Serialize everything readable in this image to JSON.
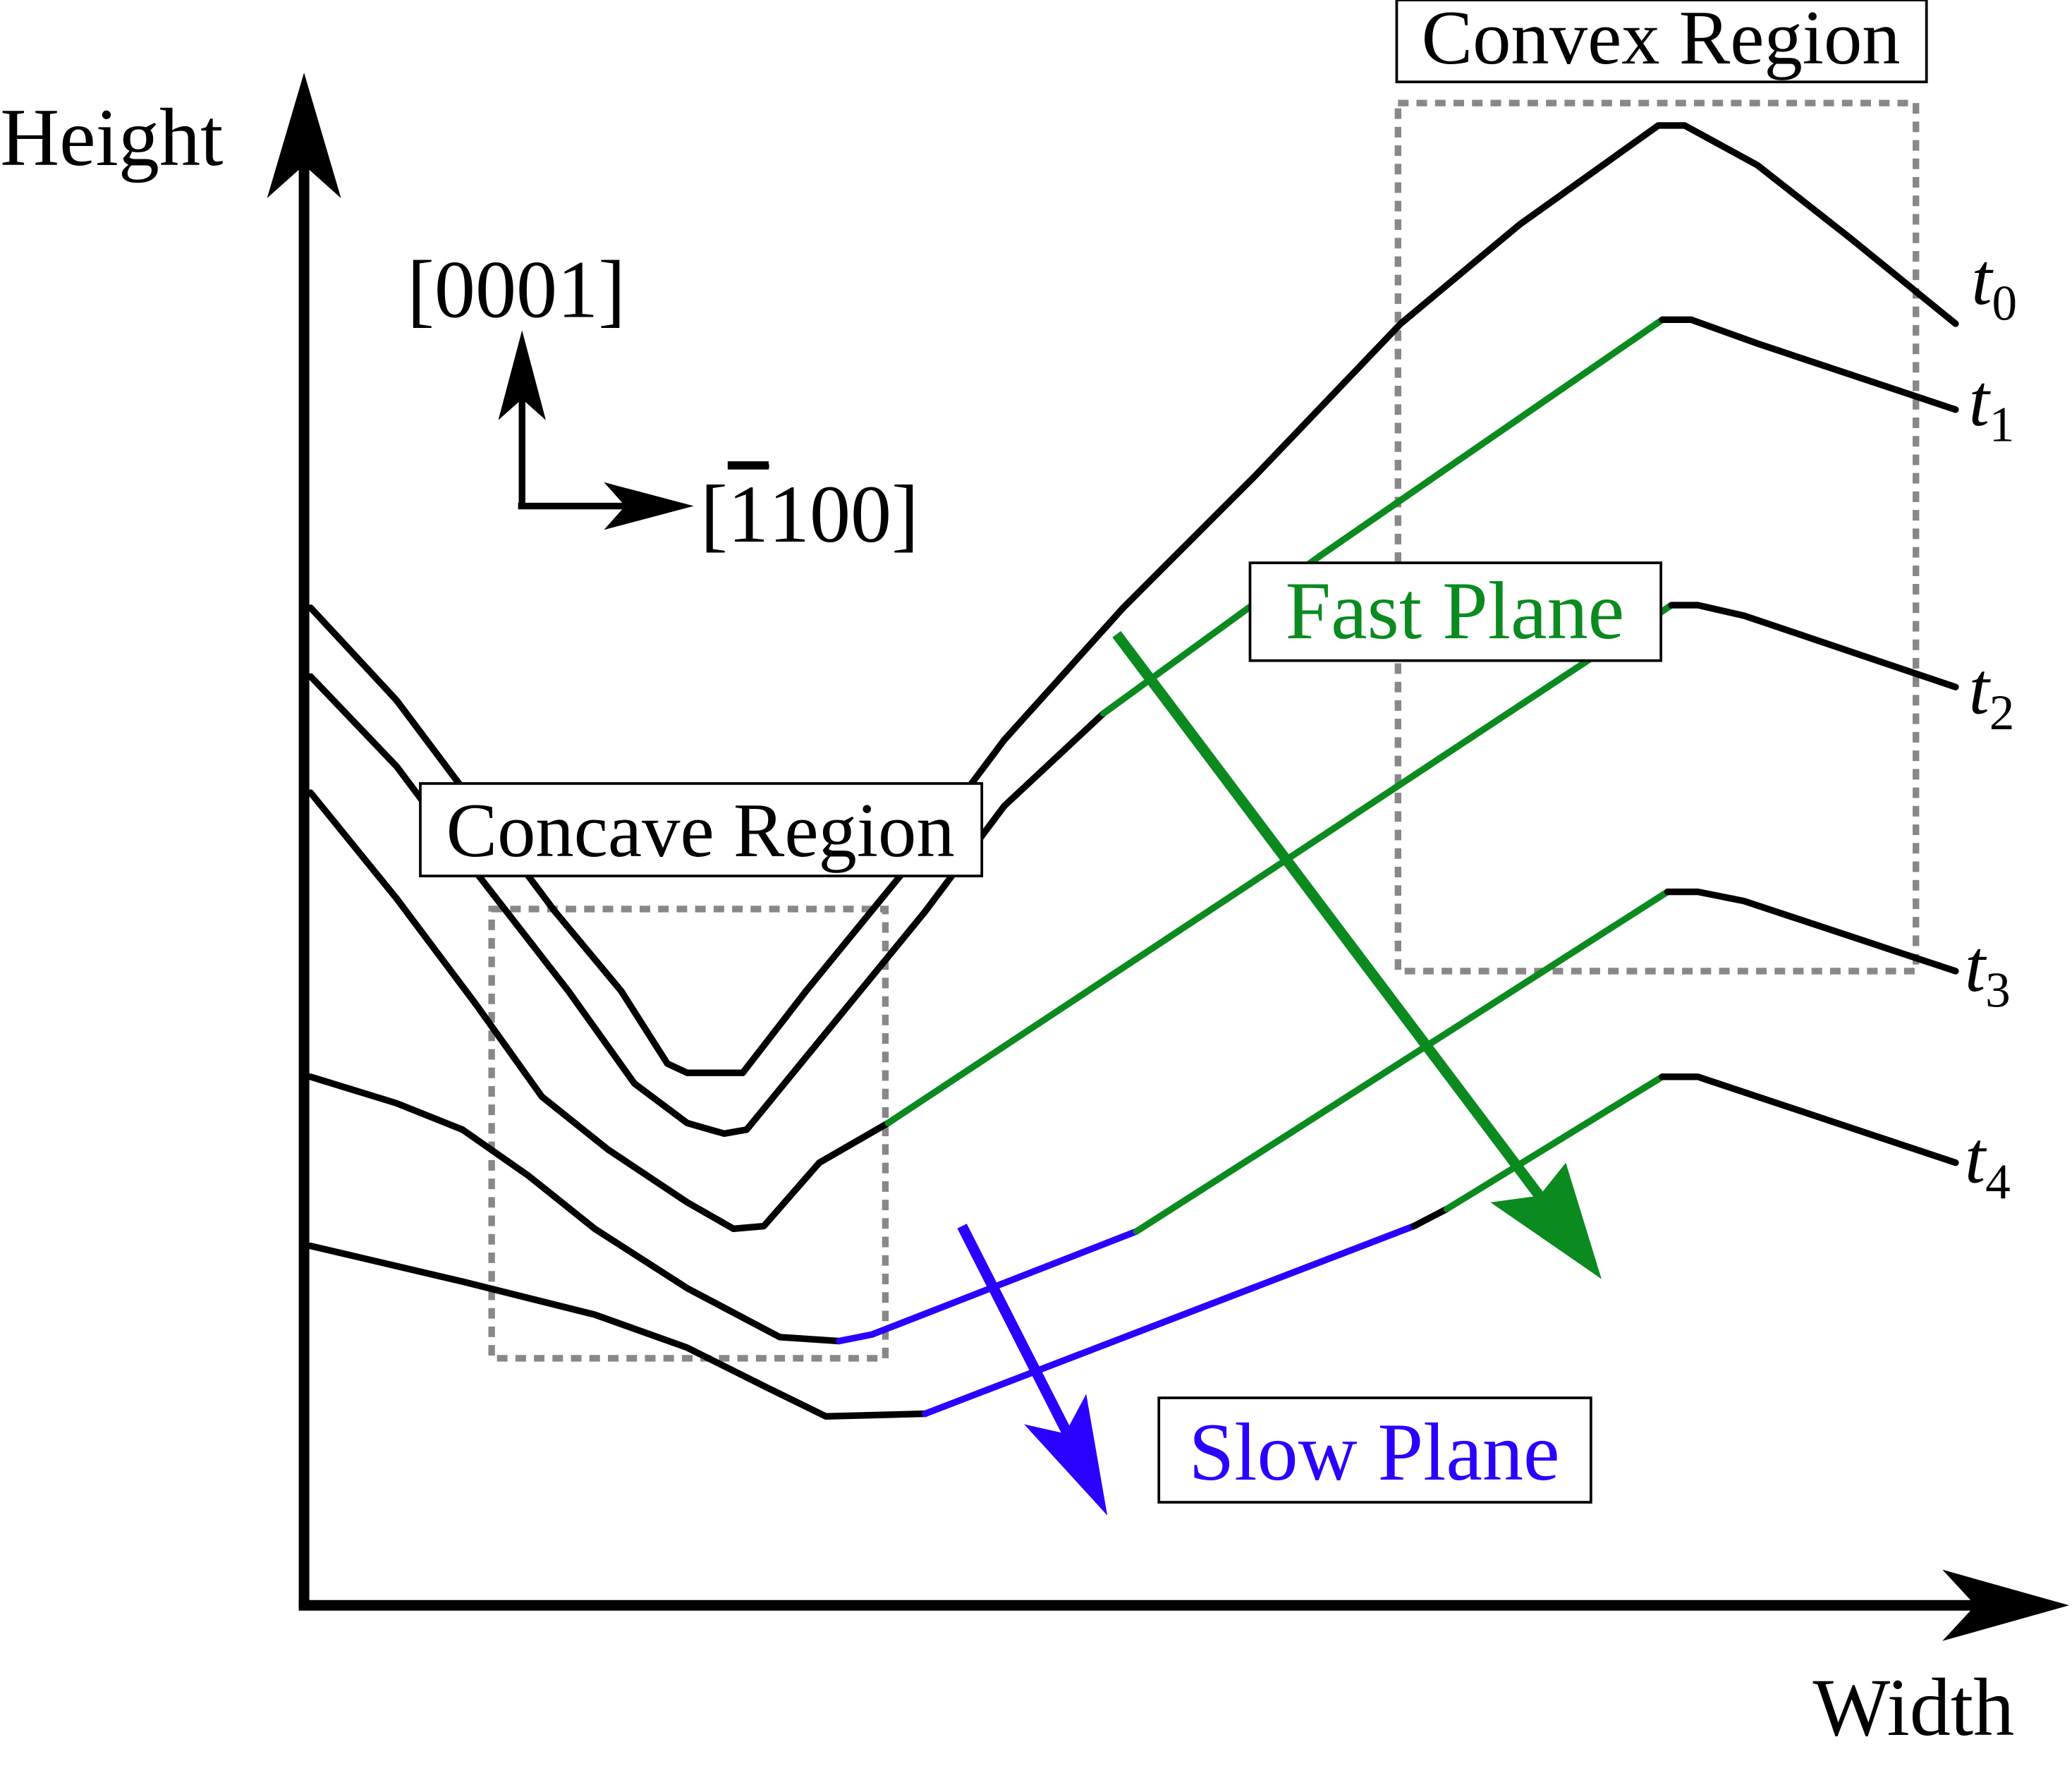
{
  "axes": {
    "y_label": "Height",
    "x_label": "Width"
  },
  "directions": {
    "up": "[0001]",
    "right_bracket_open": "[",
    "right_digit_bar": "1",
    "right_rest": "100]"
  },
  "regions": {
    "convex": "Convex Region",
    "concave": "Concave Region"
  },
  "planes": {
    "fast": "Fast Plane",
    "slow": "Slow Plane"
  },
  "time_labels": [
    {
      "t": "t",
      "sub": "0"
    },
    {
      "t": "t",
      "sub": "1"
    },
    {
      "t": "t",
      "sub": "2"
    },
    {
      "t": "t",
      "sub": "3"
    },
    {
      "t": "t",
      "sub": "4"
    }
  ],
  "colors": {
    "fast": "#0b8a1f",
    "slow": "#2a00ff",
    "profile": "#000000",
    "dashed": "#888888"
  }
}
